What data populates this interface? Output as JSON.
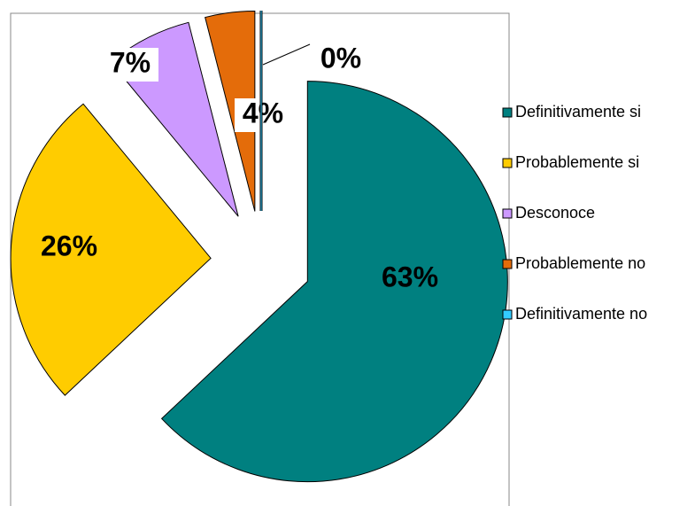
{
  "chart_data": {
    "type": "pie",
    "categories": [
      "Definitivamente si",
      "Probablemente si",
      "Desconoce",
      "Probablemente no",
      "Definitivamente no"
    ],
    "values": [
      63,
      26,
      7,
      4,
      0
    ],
    "value_labels": [
      "63%",
      "26%",
      "7%",
      "4%",
      "0%"
    ],
    "colors": [
      "#008080",
      "#ffcc00",
      "#cc99ff",
      "#e46c0a",
      "#33ccff"
    ],
    "legend": "right"
  }
}
